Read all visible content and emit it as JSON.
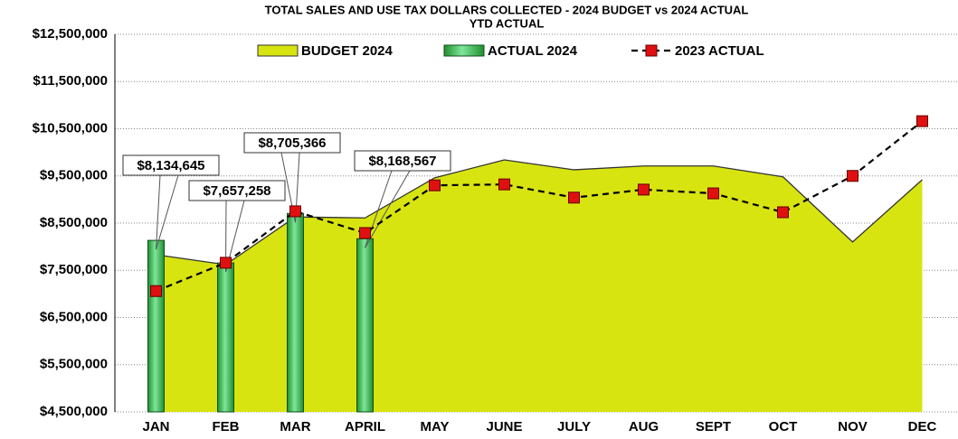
{
  "chart_data": {
    "type": "combo",
    "title": "TOTAL SALES AND USE TAX DOLLARS COLLECTED - 2024 BUDGET vs 2024 ACTUAL",
    "subtitle": "YTD ACTUAL",
    "categories": [
      "JAN",
      "FEB",
      "MAR",
      "APRIL",
      "MAY",
      "JUNE",
      "JULY",
      "AUG",
      "SEPT",
      "OCT",
      "NOV",
      "DEC"
    ],
    "series": [
      {
        "name": "BUDGET 2024",
        "kind": "area",
        "color": "#d8e410",
        "values": [
          7830000,
          7620000,
          8630000,
          8610000,
          9460000,
          9840000,
          9630000,
          9710000,
          9710000,
          9480000,
          8100000,
          9420000
        ]
      },
      {
        "name": "ACTUAL 2024",
        "kind": "bar",
        "color": "#3cbf4a",
        "values": [
          8134645,
          7657258,
          8705366,
          8168567,
          null,
          null,
          null,
          null,
          null,
          null,
          null,
          null
        ],
        "value_labels": [
          "$8,134,645",
          "$7,657,258",
          "$8,705,366",
          "$8,168,567",
          null,
          null,
          null,
          null,
          null,
          null,
          null,
          null
        ]
      },
      {
        "name": "2023 ACTUAL",
        "kind": "line",
        "color": "#e01010",
        "values": [
          7060000,
          7660000,
          8750000,
          8290000,
          9300000,
          9320000,
          9040000,
          9210000,
          9130000,
          8730000,
          9500000,
          10660000
        ]
      }
    ],
    "ylim": [
      4500000,
      12500000
    ],
    "yticks": [
      {
        "value": 4500000,
        "label": "$4,500,000"
      },
      {
        "value": 5500000,
        "label": "$5,500,000"
      },
      {
        "value": 6500000,
        "label": "$6,500,000"
      },
      {
        "value": 7500000,
        "label": "$7,500,000"
      },
      {
        "value": 8500000,
        "label": "$8,500,000"
      },
      {
        "value": 9500000,
        "label": "$9,500,000"
      },
      {
        "value": 10500000,
        "label": "$10,500,000"
      },
      {
        "value": 11500000,
        "label": "$11,500,000"
      },
      {
        "value": 12500000,
        "label": "$12,500,000"
      }
    ],
    "grid": true,
    "legend": "top"
  }
}
